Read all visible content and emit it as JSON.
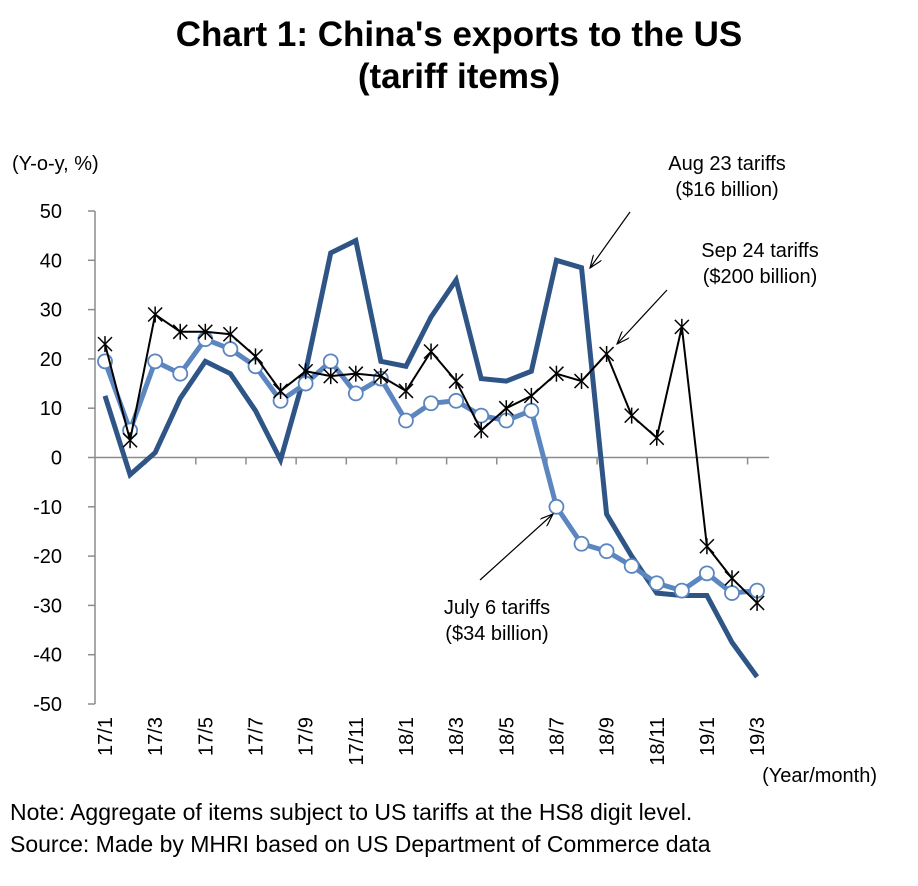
{
  "chart_data": {
    "type": "line",
    "title": [
      "Chart 1: China's exports to the US",
      "(tariff items)"
    ],
    "ylabel": "(Y-o-y, %)",
    "xlabel": "(Year/month)",
    "ylim": [
      -50,
      50
    ],
    "yticks": [
      50,
      40,
      30,
      20,
      10,
      0,
      -10,
      -20,
      -30,
      -40,
      -50
    ],
    "x": [
      "17/1",
      "17/2",
      "17/3",
      "17/4",
      "17/5",
      "17/6",
      "17/7",
      "17/8",
      "17/9",
      "17/10",
      "17/11",
      "17/12",
      "18/1",
      "18/2",
      "18/3",
      "18/4",
      "18/5",
      "18/6",
      "18/7",
      "18/8",
      "18/9",
      "18/10",
      "18/11",
      "18/12",
      "19/1",
      "19/2",
      "19/3"
    ],
    "xtick_labels": [
      "17/1",
      "17/3",
      "17/5",
      "17/7",
      "17/9",
      "17/11",
      "18/1",
      "18/3",
      "18/5",
      "18/7",
      "18/9",
      "18/11",
      "19/1",
      "19/3"
    ],
    "grid": false,
    "series": [
      {
        "name": "July 6 tariffs ($34 billion)",
        "color": "#5b86c0",
        "marker": "circle",
        "values": [
          19.5,
          5.5,
          19.5,
          17,
          24,
          22,
          18.5,
          11.5,
          15,
          19.5,
          13,
          16,
          7.5,
          11,
          11.5,
          8.5,
          7.5,
          9.5,
          -10,
          -17.5,
          -19,
          -22,
          -25.5,
          -27,
          -23.5,
          -27.5,
          -27
        ]
      },
      {
        "name": "Aug 23 tariffs ($16 billion)",
        "color": "#2f5586",
        "marker": "none",
        "values": [
          12.5,
          -3.5,
          1,
          12,
          19.5,
          17,
          9.5,
          -0.5,
          17.5,
          41.5,
          44,
          19.5,
          18.5,
          28.5,
          36,
          16,
          15.5,
          17.5,
          40,
          38.5,
          -11.5,
          -20,
          -27.5,
          -28,
          -28,
          -37.5,
          -44.5
        ]
      },
      {
        "name": "Sep 24 tariffs ($200 billion)",
        "color": "#000000",
        "marker": "asterisk",
        "values": [
          23,
          3.5,
          29,
          25.5,
          25.5,
          25,
          20.5,
          13.5,
          17.5,
          16.5,
          17,
          16.5,
          13.5,
          21.5,
          15.5,
          5.5,
          10,
          12.5,
          17,
          15.5,
          21,
          8.5,
          4,
          26.5,
          -18,
          -24.5,
          -29.5
        ]
      }
    ],
    "annotations": [
      {
        "text": [
          "Aug 23 tariffs",
          "($16 billion)"
        ],
        "points_to": "18/8"
      },
      {
        "text": [
          "Sep 24 tariffs",
          "($200 billion)"
        ],
        "points_to": "18/9"
      },
      {
        "text": [
          "July 6 tariffs",
          "($34 billion)"
        ],
        "points_to": "18/7"
      }
    ]
  },
  "notes": {
    "note": "Note:     Aggregate of items subject to US tariffs at the HS8 digit level.",
    "source": "Source: Made by MHRI based on US Department of Commerce data"
  }
}
